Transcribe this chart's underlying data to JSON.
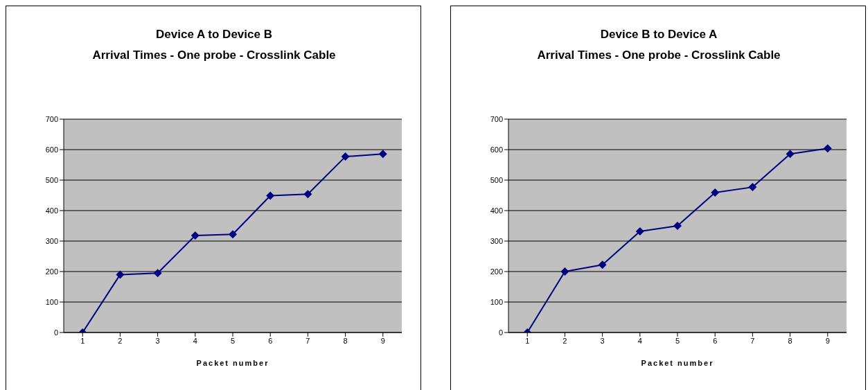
{
  "chart_data": [
    {
      "type": "line",
      "title": "Device A to Device B\nArrival Times - One probe - Crosslink Cable",
      "xlabel": "Packet number",
      "categories": [
        "1",
        "2",
        "3",
        "4",
        "5",
        "6",
        "7",
        "8",
        "9"
      ],
      "series": [
        {
          "color": "#000080",
          "values": [
            0,
            190,
            195,
            318,
            322,
            449,
            454,
            577,
            586
          ]
        }
      ],
      "ylim": [
        0,
        700
      ],
      "yticks": [
        0,
        100,
        200,
        300,
        400,
        500,
        600,
        700
      ],
      "grid": "y",
      "legend": false,
      "marker": "diamond",
      "line_style": "solid"
    },
    {
      "type": "line",
      "title": "Device B to Device A\nArrival Times - One probe - Crosslink Cable",
      "xlabel": "Packet number",
      "categories": [
        "1",
        "2",
        "3",
        "4",
        "5",
        "6",
        "7",
        "8",
        "9"
      ],
      "series": [
        {
          "color": "#000080",
          "values": [
            0,
            200,
            222,
            332,
            350,
            459,
            477,
            586,
            604
          ]
        }
      ],
      "ylim": [
        0,
        700
      ],
      "yticks": [
        0,
        100,
        200,
        300,
        400,
        500,
        600,
        700
      ],
      "grid": "y",
      "legend": false,
      "marker": "diamond",
      "line_style": "solid"
    }
  ]
}
